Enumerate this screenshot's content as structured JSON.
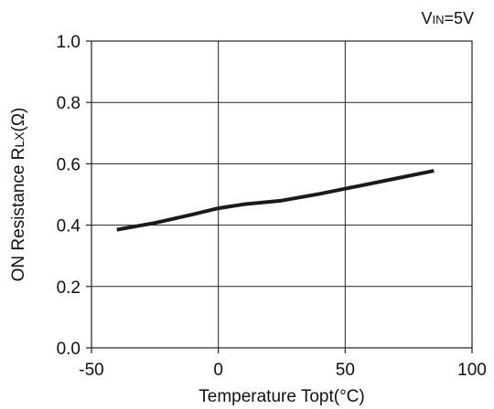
{
  "chart_data": {
    "type": "line",
    "note": {
      "main": "V",
      "sub": "IN",
      "rest": "=5V"
    },
    "xlabel": "Temperature Topt(°C)",
    "ylabel": {
      "main": "ON Resistance R",
      "sub": "LX",
      "rest": "(Ω)"
    },
    "xlim": [
      -50,
      100
    ],
    "ylim": [
      0.0,
      1.0
    ],
    "x_ticks": [
      "-50",
      "0",
      "50",
      "100"
    ],
    "y_ticks": [
      "0.0",
      "0.2",
      "0.4",
      "0.6",
      "0.8",
      "1.0"
    ],
    "grid": true,
    "series": [
      {
        "x": [
          -40,
          -25,
          -10,
          0,
          10,
          25,
          40,
          55,
          70,
          85
        ],
        "y": [
          0.385,
          0.407,
          0.435,
          0.455,
          0.468,
          0.48,
          0.502,
          0.527,
          0.552,
          0.577
        ]
      }
    ]
  }
}
